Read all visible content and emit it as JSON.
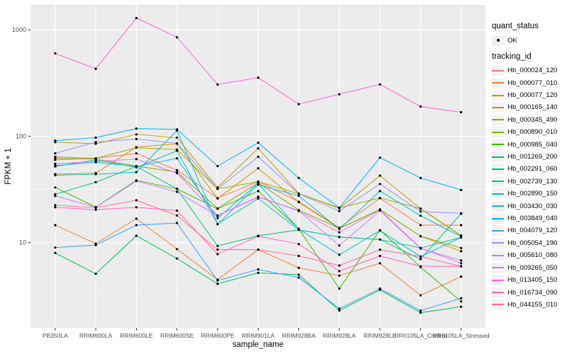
{
  "colors": {
    "panel_fill": "#EBEBEB",
    "grid": "#FFFFFF",
    "axis_text": "#4D4D4D",
    "tick_mark": "#333333",
    "point": "#000000",
    "legend_key_fill": "#F2F2F2"
  },
  "axes": {
    "x": {
      "title": "sample_name"
    },
    "y": {
      "title": "FPKM + 1",
      "scale": "log10",
      "tick_labels": [
        "10",
        "100",
        "1000"
      ],
      "tick_values": [
        10,
        100,
        1000
      ],
      "minor_log10": [
        0.5,
        1.5,
        2.5
      ],
      "range_log10": [
        0.2,
        3.2333
      ]
    }
  },
  "legend": {
    "quant_status": {
      "title": "quant_status",
      "items": [
        {
          "label": "OK",
          "marker": "point-icon",
          "color": "#000000"
        }
      ]
    },
    "tracking_id": {
      "title": "tracking_id"
    }
  },
  "chart_data": {
    "type": "line",
    "title": "",
    "xlabel": "sample_name",
    "ylabel": "FPKM + 1",
    "y_scale": "log10",
    "ylim": [
      1.58,
      1710
    ],
    "grid": true,
    "legend_position": "right",
    "point_marker": "black filled circle (quant_status = OK) at every data point",
    "categories": [
      "PB350LA",
      "RRIM600LA",
      "RRIM600LE",
      "RRIM600SE",
      "RRIM600PE",
      "RRIM901LA",
      "RRIM928BA",
      "RRIM928LA",
      "RRIM928LE",
      "RRII105LA_Control",
      "RRII105LA_Stressed"
    ],
    "series": [
      {
        "name": "Hb_000024_120",
        "color": "#F8766D",
        "values": [
          64,
          62,
          69,
          48,
          26.2,
          37.5,
          24.3,
          13.8,
          26.2,
          14.6,
          14.6
        ]
      },
      {
        "name": "Hb_000077_010",
        "color": "#EA8331",
        "values": [
          14.6,
          9.8,
          16.8,
          8.7,
          4.5,
          8.6,
          5.8,
          4.9,
          6.4,
          3.2,
          4.8
        ]
      },
      {
        "name": "Hb_000077_120",
        "color": "#D89000",
        "values": [
          44,
          45,
          79,
          85,
          26,
          50,
          24,
          13.6,
          20.5,
          11.5,
          8.3
        ]
      },
      {
        "name": "Hb_000165_140",
        "color": "#C09B00",
        "values": [
          88,
          85,
          104,
          97,
          33,
          77,
          29,
          21,
          42.7,
          20.8,
          11.6
        ]
      },
      {
        "name": "Hb_000345_490",
        "color": "#A3A500",
        "values": [
          60,
          62,
          78,
          75,
          32,
          37.4,
          28.8,
          21.3,
          26.3,
          20.9,
          11.7
        ]
      },
      {
        "name": "Hb_000890_010",
        "color": "#7CAE00",
        "values": [
          62,
          61,
          52.5,
          46,
          21,
          36.5,
          20.3,
          13.6,
          20.5,
          11.5,
          8.9
        ]
      },
      {
        "name": "Hb_000985_040",
        "color": "#39B600",
        "values": [
          33,
          21.6,
          38.5,
          32,
          20.8,
          30.5,
          13.5,
          3.7,
          13.1,
          5.9,
          2.8
        ]
      },
      {
        "name": "Hb_001269_200",
        "color": "#00BB4E",
        "values": [
          8.0,
          5.1,
          11.6,
          7.1,
          4.1,
          5.2,
          5.0,
          2.3,
          3.6,
          2.2,
          2.5
        ]
      },
      {
        "name": "Hb_002291_060",
        "color": "#00BF7D",
        "values": [
          28.5,
          37,
          52,
          32,
          9.3,
          11.6,
          13.2,
          11.3,
          10.7,
          8.9,
          11.2
        ]
      },
      {
        "name": "Hb_002739_130",
        "color": "#00C1A3",
        "values": [
          52,
          60,
          51,
          73,
          15,
          26,
          13.2,
          11.3,
          10.7,
          7.0,
          18.7
        ]
      },
      {
        "name": "Hb_002890_150",
        "color": "#00BFC4",
        "values": [
          43,
          44,
          46,
          113,
          14.9,
          35,
          27.6,
          13.4,
          30.5,
          17.9,
          11.4
        ]
      },
      {
        "name": "Hb_003430_030",
        "color": "#00BAE0",
        "values": [
          53,
          57,
          52,
          62,
          17,
          36,
          13.4,
          7.7,
          13.0,
          7.4,
          11.2
        ]
      },
      {
        "name": "Hb_003849_040",
        "color": "#00B0F6",
        "values": [
          91,
          97,
          118,
          116,
          52.4,
          87,
          40.5,
          21.3,
          63,
          40.5,
          31.3
        ]
      },
      {
        "name": "Hb_004079_120",
        "color": "#35A2FF",
        "values": [
          9.0,
          9.5,
          14.6,
          15.3,
          4.4,
          5.6,
          4.7,
          2.4,
          3.7,
          2.3,
          3.0
        ]
      },
      {
        "name": "Hb_005054_190",
        "color": "#9590FF",
        "values": [
          69,
          88,
          94,
          86,
          32,
          64,
          28.8,
          19.8,
          35.6,
          19.6,
          18.9
        ]
      },
      {
        "name": "Hb_005610_080",
        "color": "#C77CFF",
        "values": [
          27.5,
          21.5,
          38,
          30,
          17.9,
          26.8,
          20,
          9.4,
          20,
          8.8,
          6.8
        ]
      },
      {
        "name": "Hb_009265_050",
        "color": "#E76BF3",
        "values": [
          55,
          58,
          61,
          45,
          18,
          27,
          19.8,
          12.5,
          20.3,
          8.9,
          6.4
        ]
      },
      {
        "name": "Hb_013405_150",
        "color": "#FA62DB",
        "values": [
          600,
          430,
          1290,
          850,
          306,
          355,
          200,
          248,
          307,
          190,
          168
        ]
      },
      {
        "name": "Hb_016734_090",
        "color": "#FF62BC",
        "values": [
          21.5,
          20.4,
          21.5,
          20,
          7.8,
          11.5,
          9.7,
          5.4,
          7.5,
          6.0,
          6.0
        ]
      },
      {
        "name": "Hb_044155_010",
        "color": "#FF6A98",
        "values": [
          22.5,
          21.3,
          25,
          18,
          8.6,
          8.6,
          7.5,
          6.1,
          8.6,
          7.4,
          6.0
        ]
      }
    ]
  }
}
